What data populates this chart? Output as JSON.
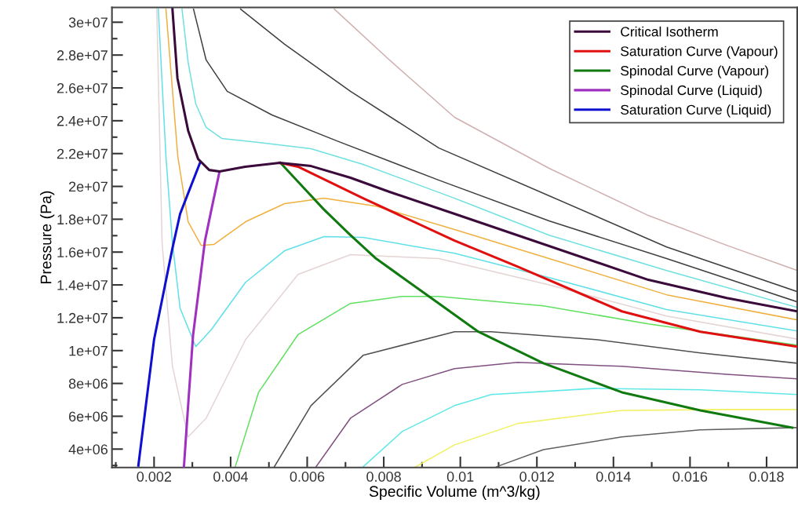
{
  "chart_data": {
    "type": "line",
    "xlabel": "Specific Volume (m^3/kg)",
    "ylabel": "Pressure (Pa)",
    "xlim": [
      0.0009,
      0.0188
    ],
    "ylim": [
      2880000.0,
      30900000.0
    ],
    "xticks": [
      {
        "value": 0.001,
        "label": null
      },
      0.002,
      {
        "value": 0.003,
        "label": null
      },
      0.004,
      {
        "value": 0.005,
        "label": null
      },
      0.006,
      {
        "value": 0.007,
        "label": null
      },
      0.008,
      {
        "value": 0.009,
        "label": null
      },
      0.01,
      {
        "value": 0.011,
        "label": null
      },
      0.012,
      {
        "value": 0.013,
        "label": null
      },
      0.014,
      {
        "value": 0.015,
        "label": null
      },
      0.016,
      {
        "value": 0.017,
        "label": null
      },
      0.018
    ],
    "yticks": [
      {
        "value": 3000000.0,
        "label": null
      },
      {
        "value": 4000000.0,
        "label": "4e+06"
      },
      {
        "value": 5000000.0,
        "label": null
      },
      {
        "value": 6000000.0,
        "label": "6e+06"
      },
      {
        "value": 7000000.0,
        "label": null
      },
      {
        "value": 8000000.0,
        "label": "8e+06"
      },
      {
        "value": 9000000.0,
        "label": null
      },
      {
        "value": 10000000.0,
        "label": "1e+07"
      },
      {
        "value": 11000000.0,
        "label": null
      },
      {
        "value": 12000000.0,
        "label": "1.2e+07"
      },
      {
        "value": 13000000.0,
        "label": null
      },
      {
        "value": 14000000.0,
        "label": "1.4e+07"
      },
      {
        "value": 15000000.0,
        "label": null
      },
      {
        "value": 16000000.0,
        "label": "1.6e+07"
      },
      {
        "value": 17000000.0,
        "label": null
      },
      {
        "value": 18000000.0,
        "label": "1.8e+07"
      },
      {
        "value": 19000000.0,
        "label": null
      },
      {
        "value": 20000000.0,
        "label": "2e+07"
      },
      {
        "value": 21000000.0,
        "label": null
      },
      {
        "value": 22000000.0,
        "label": "2.2e+07"
      },
      {
        "value": 23000000.0,
        "label": null
      },
      {
        "value": 24000000.0,
        "label": "2.4e+07"
      },
      {
        "value": 25000000.0,
        "label": null
      },
      {
        "value": 26000000.0,
        "label": "2.6e+07"
      },
      {
        "value": 27000000.0,
        "label": null
      },
      {
        "value": 28000000.0,
        "label": "2.8e+07"
      },
      {
        "value": 29000000.0,
        "label": null
      },
      {
        "value": 30000000.0,
        "label": "3e+07"
      }
    ],
    "grid": false,
    "legend": "top right",
    "series": [
      {
        "name": "Critical Isotherm",
        "color": "#3a0a3a",
        "x": [
          0.00248,
          0.00261,
          0.00289,
          0.00315,
          0.00344,
          0.00371,
          0.00438,
          0.00528,
          0.0061,
          0.00713,
          0.00815,
          0.00985,
          0.01149,
          0.01491,
          0.01696,
          0.0188
        ],
        "values": [
          30800000.0,
          26600000.0,
          23400000.0,
          21670000.0,
          21000000.0,
          20910000.0,
          21200000.0,
          21440000.0,
          21240000.0,
          20530000.0,
          19670000.0,
          18330000.0,
          17030000.0,
          14310000.0,
          13200000.0,
          12390000.0
        ]
      },
      {
        "name": "Saturation Curve (Vapour)",
        "color": "#e01010",
        "x": [
          0.00528,
          0.00576,
          0.00746,
          0.00985,
          0.01149,
          0.01422,
          0.01627,
          0.0188
        ],
        "values": [
          21440000.0,
          21200000.0,
          19280000.0,
          16700000.0,
          15120000.0,
          12390000.0,
          11150000.0,
          10240000.0
        ]
      },
      {
        "name": "Spinodal Curve (Vapour)",
        "color": "#107a10",
        "x": [
          0.0053,
          0.00643,
          0.00713,
          0.0078,
          0.00944,
          0.01047,
          0.01217,
          0.01422,
          0.01627,
          0.01867
        ],
        "values": [
          21440000.0,
          18610000.0,
          17030000.0,
          15600000.0,
          12870000.0,
          11150000.0,
          9230000.0,
          7460000.0,
          6360000.0,
          5310000.0
        ]
      },
      {
        "name": "Spinodal Curve (Liquid)",
        "color": "#a030c0",
        "x": [
          0.00371,
          0.0035,
          0.00333,
          0.00302,
          0.00289,
          0.00278
        ],
        "values": [
          20910000.0,
          18610000.0,
          16700000.0,
          10970000.0,
          6670000.0,
          2920000.0
        ]
      },
      {
        "name": "Saturation Curve (Liquid)",
        "color": "#1010d0",
        "x": [
          0.0032,
          0.00268,
          0.00248,
          0.002,
          0.00159
        ],
        "values": [
          21440000.0,
          18330000.0,
          16230000.0,
          10670000.0,
          3000000.0
        ]
      },
      {
        "color": "#d0b0b0",
        "x": [
          0.00671,
          0.00815,
          0.00985,
          0.01232,
          0.01491,
          0.01696,
          0.0188
        ],
        "values": [
          30800000.0,
          27700000.0,
          24210000.0,
          21100000.0,
          18230000.0,
          16410000.0,
          14880000.0
        ]
      },
      {
        "color": "#404040",
        "x": [
          0.00426,
          0.00541,
          0.00713,
          0.00944,
          0.01232,
          0.01539,
          0.0188
        ],
        "values": [
          30800000.0,
          28660000.0,
          25790000.0,
          22340000.0,
          19430000.0,
          16310000.0,
          13590000.0
        ]
      },
      {
        "color": "#404040",
        "x": [
          0.00303,
          0.00336,
          0.00391,
          0.00508,
          0.00678,
          0.00944,
          0.01232,
          0.01539,
          0.0188
        ],
        "values": [
          30800000.0,
          27700000.0,
          25790000.0,
          24350000.0,
          22770000.0,
          20380000.0,
          17900000.0,
          15600000.0,
          12970000.0
        ]
      },
      {
        "color": "#70e0e0",
        "x": [
          0.00273,
          0.00289,
          0.00309,
          0.00336,
          0.00377,
          0.00473,
          0.0061,
          0.00746,
          0.00985,
          0.01232,
          0.01539,
          0.0188
        ],
        "values": [
          30800000.0,
          27560000.0,
          25020000.0,
          23590000.0,
          22920000.0,
          22680000.0,
          22300000.0,
          21340000.0,
          19280000.0,
          17030000.0,
          14880000.0,
          12630000.0
        ]
      },
      {
        "color": "#f0b040",
        "x": [
          0.00231,
          0.00262,
          0.00289,
          0.00323,
          0.00356,
          0.00439,
          0.00541,
          0.00644,
          0.0078,
          0.00985,
          0.01232,
          0.01539,
          0.0188
        ],
        "values": [
          30800000.0,
          21820000.0,
          17850000.0,
          16410000.0,
          16460000.0,
          17850000.0,
          18950000.0,
          19280000.0,
          18800000.0,
          17370000.0,
          15600000.0,
          13400000.0,
          11870000.0
        ]
      },
      {
        "color": "#60e0e8",
        "x": [
          0.00211,
          0.00231,
          0.00248,
          0.00268,
          0.00309,
          0.0035,
          0.00439,
          0.00541,
          0.00644,
          0.00746,
          0.00985,
          0.01232,
          0.01539,
          0.0188
        ],
        "values": [
          30800000.0,
          21820000.0,
          16560000.0,
          12580000.0,
          10240000.0,
          11290000.0,
          14160000.0,
          16080000.0,
          16940000.0,
          16890000.0,
          15930000.0,
          14450000.0,
          12500000.0,
          11200000.0
        ]
      },
      {
        "color": "#e4d4d4",
        "x": [
          0.00207,
          0.00221,
          0.00248,
          0.00289,
          0.00336,
          0.00439,
          0.00576,
          0.00713,
          0.00815,
          0.00944,
          0.01232,
          0.01539,
          0.0188
        ],
        "values": [
          30800000.0,
          16560000.0,
          9040000.0,
          4740000.0,
          5880000.0,
          10670000.0,
          14640000.0,
          15840000.0,
          15740000.0,
          15600000.0,
          14000000.0,
          12100000.0,
          10700000.0
        ]
      },
      {
        "color": "#60e060",
        "x": [
          0.00412,
          0.00473,
          0.00576,
          0.00713,
          0.00848,
          0.00944,
          0.01217,
          0.01491,
          0.0188
        ],
        "values": [
          2920000.0,
          7460000.0,
          10970000.0,
          12870000.0,
          13300000.0,
          13300000.0,
          12730000.0,
          11630000.0,
          10330000.0
        ]
      },
      {
        "color": "#505050",
        "x": [
          0.00514,
          0.0061,
          0.00746,
          0.00985,
          0.01081,
          0.01354,
          0.01627,
          0.0188
        ],
        "values": [
          2920000.0,
          6650000.0,
          9710000.0,
          11150000.0,
          11150000.0,
          10670000.0,
          9860000.0,
          9230000.0
        ]
      },
      {
        "color": "#805080",
        "x": [
          0.00623,
          0.00713,
          0.00848,
          0.00985,
          0.01149,
          0.01422,
          0.01696,
          0.0188
        ],
        "values": [
          2920000.0,
          5880000.0,
          7940000.0,
          8900000.0,
          9280000.0,
          9040000.0,
          8560000.0,
          8280000.0
        ]
      },
      {
        "color": "#60e8e8",
        "x": [
          0.00746,
          0.00848,
          0.00985,
          0.01081,
          0.01354,
          0.01627,
          0.0188
        ],
        "values": [
          2920000.0,
          5070000.0,
          6650000.0,
          7320000.0,
          7700000.0,
          7610000.0,
          7320000.0
        ]
      },
      {
        "color": "#f0f060",
        "x": [
          0.00883,
          0.00985,
          0.01149,
          0.01422,
          0.01696,
          0.0188
        ],
        "values": [
          2920000.0,
          4260000.0,
          5550000.0,
          6360000.0,
          6410000.0,
          6410000.0
        ]
      },
      {
        "color": "#606060",
        "x": [
          0.01094,
          0.01217,
          0.01422,
          0.01627,
          0.0188
        ],
        "values": [
          2920000.0,
          3970000.0,
          4740000.0,
          5170000.0,
          5310000.0
        ]
      }
    ]
  }
}
